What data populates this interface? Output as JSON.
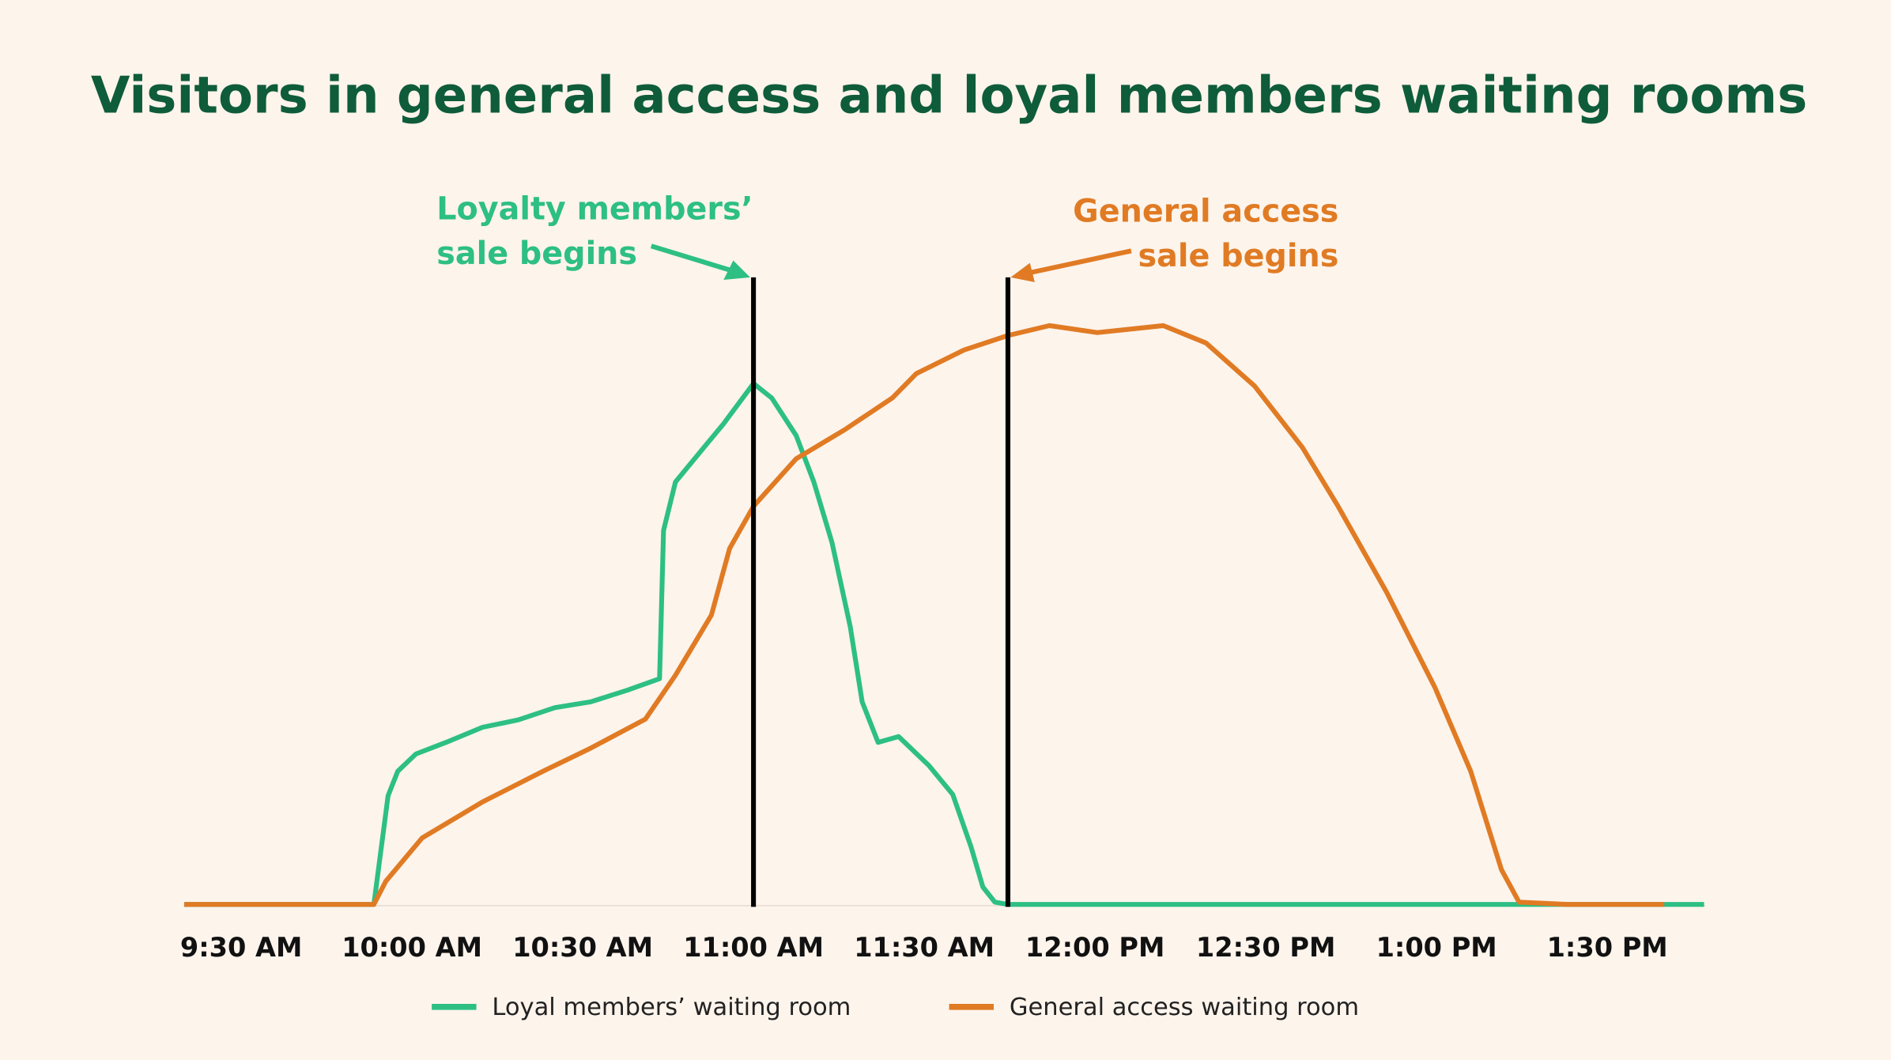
{
  "chart_data": {
    "type": "line",
    "title": "Visitors in general access and loyal members waiting rooms",
    "xlim": [
      560,
      827
    ],
    "ylim": [
      0,
      100
    ],
    "xticks": [
      {
        "value": 570,
        "label": "9:30 AM"
      },
      {
        "value": 600,
        "label": "10:00 AM"
      },
      {
        "value": 630,
        "label": "10:30 AM"
      },
      {
        "value": 660,
        "label": "11:00 AM"
      },
      {
        "value": 690,
        "label": "11:30 AM"
      },
      {
        "value": 720,
        "label": "12:00 PM"
      },
      {
        "value": 750,
        "label": "12:30 PM"
      },
      {
        "value": 780,
        "label": "1:00 PM"
      },
      {
        "value": 810,
        "label": "1:30 PM"
      }
    ],
    "series": [
      {
        "name": "Loyal members’ waiting room",
        "color": "#2dbf84",
        "x": [
          560,
          592,
          593.3,
          595.8,
          597.5,
          600.7,
          606,
          612.4,
          618.7,
          625.1,
          631.4,
          637.8,
          643.5,
          644.2,
          646.3,
          650.5,
          654.7,
          660,
          663.2,
          667.5,
          670.6,
          673.8,
          677,
          679.1,
          681.9,
          685.5,
          690.8,
          695,
          698.2,
          700.3,
          702.4,
          704.7,
          827
        ],
        "values": [
          0,
          0,
          0,
          18.8,
          23,
          26,
          28,
          30.6,
          31.9,
          34,
          35,
          37,
          39,
          64.6,
          73,
          78,
          83,
          90,
          87.5,
          81,
          73,
          62.5,
          48,
          35,
          28,
          29,
          24,
          19,
          10,
          3,
          0.4,
          0,
          0
        ]
      },
      {
        "name": "General access waiting room",
        "color": "#e07b24",
        "x": [
          560,
          593.3,
          595.4,
          601.8,
          612.4,
          623,
          631.4,
          641,
          646.3,
          652.6,
          655.8,
          660,
          667.5,
          676,
          684.4,
          688.6,
          697,
          704.7,
          712,
          720.4,
          732,
          739.5,
          748,
          756.4,
          762.7,
          771.2,
          779.7,
          786,
          791.4,
          794.5,
          803,
          820
        ],
        "values": [
          0,
          0,
          4,
          11.5,
          17.7,
          23,
          27,
          32,
          39.6,
          50,
          61.5,
          68.8,
          77,
          82,
          87.5,
          91.7,
          95.8,
          98.3,
          100,
          98.8,
          100,
          97,
          89.6,
          79,
          68.8,
          54,
          37.5,
          23,
          6,
          0.4,
          0,
          0
        ]
      }
    ],
    "annotations": [
      {
        "lines": [
          "Loyalty members’",
          "sale begins"
        ],
        "x": 660,
        "color": "#2dbf84"
      },
      {
        "lines": [
          "General access",
          "sale begins"
        ],
        "x": 704.7,
        "color": "#e07b24"
      }
    ]
  }
}
